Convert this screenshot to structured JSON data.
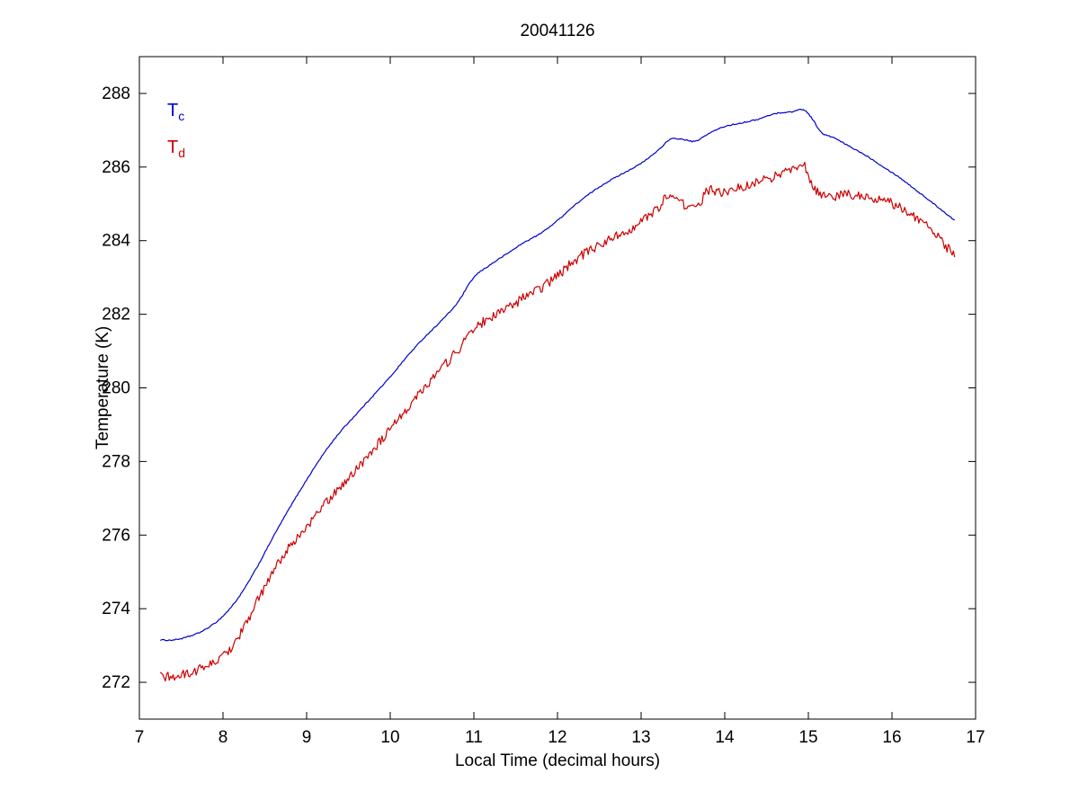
{
  "colors": {
    "background": "#ffffff",
    "axis": "#000000"
  },
  "chart_data": {
    "type": "line",
    "title": "20041126",
    "xlabel": "Local Time (decimal hours)",
    "ylabel": "Temperature (K)",
    "xlim": [
      7,
      17
    ],
    "ylim": [
      271,
      289
    ],
    "xticks": [
      7,
      8,
      9,
      10,
      11,
      12,
      13,
      14,
      15,
      16,
      17
    ],
    "yticks": [
      272,
      274,
      276,
      278,
      280,
      282,
      284,
      286,
      288
    ],
    "grid": false,
    "legend": {
      "position": "top-left-inside",
      "entries": [
        {
          "main": "T",
          "sub": "c",
          "color": "#0000cc"
        },
        {
          "main": "T",
          "sub": "d",
          "color": "#cc0000"
        }
      ]
    },
    "series": [
      {
        "name": "Tc",
        "color": "#0000cc",
        "noise_amplitude": 0.015,
        "x": [
          7.25,
          7.4,
          7.6,
          7.8,
          8.0,
          8.2,
          8.4,
          8.6,
          8.8,
          9.0,
          9.2,
          9.4,
          9.6,
          9.8,
          10.0,
          10.2,
          10.4,
          10.6,
          10.8,
          11.0,
          11.2,
          11.4,
          11.6,
          11.8,
          12.0,
          12.2,
          12.4,
          12.6,
          12.8,
          13.0,
          13.2,
          13.35,
          13.5,
          13.65,
          13.8,
          14.0,
          14.2,
          14.4,
          14.6,
          14.8,
          14.95,
          15.05,
          15.15,
          15.3,
          15.5,
          15.7,
          15.9,
          16.1,
          16.3,
          16.5,
          16.75
        ],
        "y": [
          273.15,
          273.15,
          273.25,
          273.45,
          273.8,
          274.35,
          275.1,
          275.95,
          276.75,
          277.5,
          278.2,
          278.8,
          279.3,
          279.8,
          280.3,
          280.85,
          281.35,
          281.8,
          282.3,
          283.0,
          283.35,
          283.65,
          283.95,
          284.2,
          284.55,
          284.95,
          285.3,
          285.6,
          285.85,
          286.1,
          286.45,
          286.75,
          286.75,
          286.7,
          286.9,
          287.1,
          287.2,
          287.3,
          287.45,
          287.5,
          287.55,
          287.3,
          286.95,
          286.8,
          286.55,
          286.3,
          286.0,
          285.7,
          285.35,
          285.0,
          284.55
        ]
      },
      {
        "name": "Td",
        "color": "#cc0000",
        "noise_amplitude": 0.13,
        "x": [
          7.25,
          7.4,
          7.6,
          7.8,
          8.0,
          8.2,
          8.4,
          8.6,
          8.8,
          9.0,
          9.2,
          9.4,
          9.6,
          9.8,
          10.0,
          10.2,
          10.4,
          10.6,
          10.8,
          11.0,
          11.2,
          11.4,
          11.6,
          11.8,
          12.0,
          12.2,
          12.4,
          12.6,
          12.8,
          13.0,
          13.2,
          13.35,
          13.5,
          13.65,
          13.8,
          14.0,
          14.2,
          14.4,
          14.6,
          14.8,
          14.95,
          15.05,
          15.15,
          15.3,
          15.5,
          15.7,
          15.9,
          16.1,
          16.3,
          16.5,
          16.75
        ],
        "y": [
          272.15,
          272.15,
          272.25,
          272.45,
          272.7,
          273.3,
          274.15,
          275.0,
          275.7,
          276.2,
          276.8,
          277.3,
          277.8,
          278.35,
          278.85,
          279.45,
          280.0,
          280.5,
          281.0,
          281.6,
          281.9,
          282.15,
          282.45,
          282.7,
          283.05,
          283.45,
          283.75,
          284.0,
          284.25,
          284.5,
          284.9,
          285.25,
          285.0,
          284.9,
          285.35,
          285.3,
          285.45,
          285.6,
          285.75,
          285.95,
          286.05,
          285.5,
          285.25,
          285.2,
          285.25,
          285.15,
          285.1,
          284.9,
          284.6,
          284.25,
          283.55
        ]
      }
    ]
  }
}
